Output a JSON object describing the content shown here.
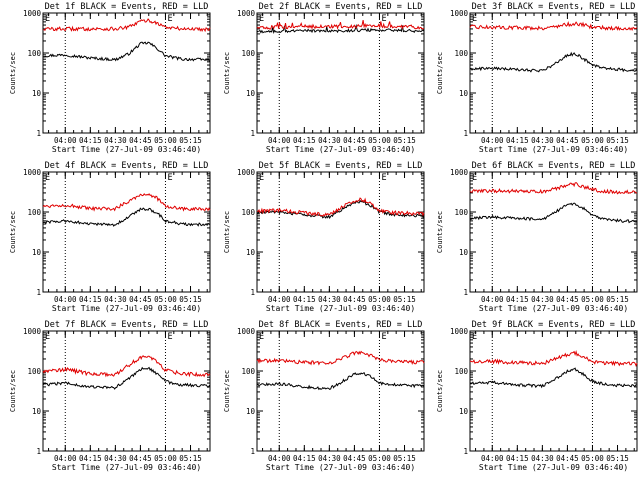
{
  "figure": {
    "colors": {
      "events": "#000000",
      "lld": "#e00000",
      "frame": "#000000",
      "background": "#ffffff"
    },
    "y_scale": "log"
  },
  "chart_data": [
    {
      "type": "line",
      "title": "Det 1f BLACK = Events, RED = LLD",
      "xlabel": "Start Time (27-Jul-09 03:46:40)",
      "ylabel": "Counts/sec",
      "x_ticks": [
        "04:00",
        "04:15",
        "04:30",
        "04:45",
        "05:00",
        "05:15"
      ],
      "x_tick_times": [
        "04:00",
        "04:15",
        "04:30",
        "04:45",
        "05:00",
        "05:15"
      ],
      "x_range": [
        "03:46:40",
        "05:26:40"
      ],
      "ylim": [
        1,
        1000
      ],
      "y_scale": "log",
      "y_ticks": [
        "1",
        "10",
        "100",
        "1000"
      ],
      "marker_lines": [
        "04:00",
        "05:00"
      ],
      "saa_flag": "E",
      "saa_flag_times": [
        "03:46:40",
        "05:00"
      ],
      "series": [
        {
          "name": "Events",
          "color": "#000000",
          "x": [
            "03:46:40",
            "04:00",
            "04:15",
            "04:30",
            "04:38",
            "04:45",
            "04:50",
            "04:55",
            "05:00",
            "05:10",
            "05:26:40"
          ],
          "values": [
            85,
            90,
            75,
            68,
            95,
            170,
            180,
            130,
            85,
            70,
            68
          ]
        },
        {
          "name": "LLD",
          "color": "#e00000",
          "x": [
            "03:46:40",
            "04:00",
            "04:15",
            "04:30",
            "04:38",
            "04:45",
            "04:50",
            "04:55",
            "05:00",
            "05:10",
            "05:26:40"
          ],
          "values": [
            400,
            400,
            400,
            400,
            440,
            620,
            650,
            560,
            440,
            400,
            395
          ]
        }
      ]
    },
    {
      "type": "line",
      "title": "Det 2f BLACK = Events, RED = LLD",
      "xlabel": "Start Time (27-Jul-09 03:46:40)",
      "ylabel": "Counts/sec",
      "x_ticks": [
        "04:00",
        "04:15",
        "04:30",
        "04:45",
        "05:00",
        "05:15"
      ],
      "x_tick_times": [
        "04:00",
        "04:15",
        "04:30",
        "04:45",
        "05:00",
        "05:15"
      ],
      "x_range": [
        "03:46:40",
        "05:26:40"
      ],
      "ylim": [
        1,
        1000
      ],
      "y_scale": "log",
      "y_ticks": [
        "1",
        "10",
        "100",
        "1000"
      ],
      "marker_lines": [
        "04:00",
        "05:00"
      ],
      "saa_flag": "E",
      "saa_flag_times": [
        "03:46:40",
        "05:00"
      ],
      "series": [
        {
          "name": "Events",
          "color": "#000000",
          "x": [
            "03:46:40",
            "04:00",
            "04:15",
            "04:30",
            "04:45",
            "05:00",
            "05:15",
            "05:26:40"
          ],
          "values": [
            340,
            350,
            360,
            355,
            370,
            380,
            360,
            350
          ]
        },
        {
          "name": "LLD",
          "color": "#e00000",
          "x": [
            "03:46:40",
            "04:00",
            "04:15",
            "04:30",
            "04:45",
            "05:00",
            "05:15",
            "05:26:40"
          ],
          "values": [
            430,
            440,
            460,
            450,
            470,
            480,
            455,
            440
          ]
        }
      ]
    },
    {
      "type": "line",
      "title": "Det 3f BLACK = Events, RED = LLD",
      "xlabel": "Start Time (27-Jul-09 03:46:40)",
      "ylabel": "Counts/sec",
      "x_ticks": [
        "04:00",
        "04:15",
        "04:30",
        "04:45",
        "05:00",
        "05:15"
      ],
      "x_tick_times": [
        "04:00",
        "04:15",
        "04:30",
        "04:45",
        "05:00",
        "05:15"
      ],
      "x_range": [
        "03:46:40",
        "05:26:40"
      ],
      "ylim": [
        1,
        1000
      ],
      "y_scale": "log",
      "y_ticks": [
        "1",
        "10",
        "100",
        "1000"
      ],
      "marker_lines": [
        "04:00",
        "05:00"
      ],
      "saa_flag": "E",
      "saa_flag_times": [
        "03:46:40",
        "05:00"
      ],
      "series": [
        {
          "name": "Events",
          "color": "#000000",
          "x": [
            "03:46:40",
            "04:00",
            "04:15",
            "04:30",
            "04:38",
            "04:45",
            "04:50",
            "04:55",
            "05:00",
            "05:10",
            "05:26:40"
          ],
          "values": [
            40,
            42,
            38,
            36,
            55,
            90,
            95,
            70,
            50,
            40,
            36
          ]
        },
        {
          "name": "LLD",
          "color": "#e00000",
          "x": [
            "03:46:40",
            "04:00",
            "04:15",
            "04:30",
            "04:38",
            "04:45",
            "04:50",
            "04:55",
            "05:00",
            "05:10",
            "05:26:40"
          ],
          "values": [
            450,
            440,
            430,
            420,
            460,
            520,
            540,
            500,
            450,
            420,
            400
          ]
        }
      ]
    },
    {
      "type": "line",
      "title": "Det 4f BLACK = Events, RED = LLD",
      "xlabel": "Start Time (27-Jul-09 03:46:40)",
      "ylabel": "Counts/sec",
      "x_ticks": [
        "04:00",
        "04:15",
        "04:30",
        "04:45",
        "05:00",
        "05:15"
      ],
      "x_tick_times": [
        "04:00",
        "04:15",
        "04:30",
        "04:45",
        "05:00",
        "05:15"
      ],
      "x_range": [
        "03:46:40",
        "05:26:40"
      ],
      "ylim": [
        1,
        1000
      ],
      "y_scale": "log",
      "y_ticks": [
        "1",
        "10",
        "100",
        "1000"
      ],
      "marker_lines": [
        "04:00",
        "05:00"
      ],
      "saa_flag": "E",
      "saa_flag_times": [
        "03:46:40",
        "05:00"
      ],
      "series": [
        {
          "name": "Events",
          "color": "#000000",
          "x": [
            "03:46:40",
            "04:00",
            "04:15",
            "04:30",
            "04:38",
            "04:45",
            "04:50",
            "04:55",
            "05:00",
            "05:10",
            "05:26:40"
          ],
          "values": [
            55,
            60,
            50,
            48,
            75,
            115,
            120,
            95,
            60,
            50,
            48
          ]
        },
        {
          "name": "LLD",
          "color": "#e00000",
          "x": [
            "03:46:40",
            "04:00",
            "04:15",
            "04:30",
            "04:38",
            "04:45",
            "04:50",
            "04:55",
            "05:00",
            "05:10",
            "05:26:40"
          ],
          "values": [
            140,
            150,
            120,
            120,
            190,
            270,
            280,
            220,
            140,
            120,
            115
          ]
        }
      ]
    },
    {
      "type": "line",
      "title": "Det 5f BLACK = Events, RED = LLD",
      "xlabel": "Start Time (27-Jul-09 03:46:40)",
      "ylabel": "Counts/sec",
      "x_ticks": [
        "04:00",
        "04:15",
        "04:30",
        "04:45",
        "05:00",
        "05:15"
      ],
      "x_tick_times": [
        "04:00",
        "04:15",
        "04:30",
        "04:45",
        "05:00",
        "05:15"
      ],
      "x_range": [
        "03:46:40",
        "05:26:40"
      ],
      "ylim": [
        1,
        1000
      ],
      "y_scale": "log",
      "y_ticks": [
        "1",
        "10",
        "100",
        "1000"
      ],
      "marker_lines": [
        "04:00",
        "05:00"
      ],
      "saa_flag": "E",
      "saa_flag_times": [
        "03:46:40",
        "05:00"
      ],
      "series": [
        {
          "name": "Events",
          "color": "#000000",
          "x": [
            "03:46:40",
            "04:00",
            "04:15",
            "04:30",
            "04:38",
            "04:45",
            "04:50",
            "04:55",
            "05:00",
            "05:10",
            "05:26:40"
          ],
          "values": [
            95,
            100,
            85,
            75,
            120,
            175,
            180,
            140,
            100,
            85,
            80
          ]
        },
        {
          "name": "LLD",
          "color": "#e00000",
          "x": [
            "03:46:40",
            "04:00",
            "04:15",
            "04:30",
            "04:38",
            "04:45",
            "04:50",
            "04:55",
            "05:00",
            "05:10",
            "05:26:40"
          ],
          "values": [
            105,
            110,
            95,
            85,
            135,
            195,
            205,
            160,
            110,
            95,
            90
          ]
        }
      ]
    },
    {
      "type": "line",
      "title": "Det 6f BLACK = Events, RED = LLD",
      "xlabel": "Start Time (27-Jul-09 03:46:40)",
      "ylabel": "Counts/sec",
      "x_ticks": [
        "04:00",
        "04:15",
        "04:30",
        "04:45",
        "05:00",
        "05:15"
      ],
      "x_tick_times": [
        "04:00",
        "04:15",
        "04:30",
        "04:45",
        "05:00",
        "05:15"
      ],
      "x_range": [
        "03:46:40",
        "05:26:40"
      ],
      "ylim": [
        1,
        1000
      ],
      "y_scale": "log",
      "y_ticks": [
        "1",
        "10",
        "100",
        "1000"
      ],
      "marker_lines": [
        "04:00",
        "05:00"
      ],
      "saa_flag": "E",
      "saa_flag_times": [
        "03:46:40",
        "05:00"
      ],
      "series": [
        {
          "name": "Events",
          "color": "#000000",
          "x": [
            "03:46:40",
            "04:00",
            "04:15",
            "04:30",
            "04:38",
            "04:45",
            "04:50",
            "04:55",
            "05:00",
            "05:10",
            "05:26:40"
          ],
          "values": [
            70,
            75,
            70,
            65,
            100,
            150,
            160,
            120,
            80,
            62,
            58
          ]
        },
        {
          "name": "LLD",
          "color": "#e00000",
          "x": [
            "03:46:40",
            "04:00",
            "04:15",
            "04:30",
            "04:38",
            "04:45",
            "04:50",
            "04:55",
            "05:00",
            "05:10",
            "05:26:40"
          ],
          "values": [
            330,
            340,
            330,
            320,
            380,
            470,
            500,
            430,
            360,
            320,
            310
          ]
        }
      ]
    },
    {
      "type": "line",
      "title": "Det 7f BLACK = Events, RED = LLD",
      "xlabel": "Start Time (27-Jul-09 03:46:40)",
      "ylabel": "Counts/sec",
      "x_ticks": [
        "04:00",
        "04:15",
        "04:30",
        "04:45",
        "05:00",
        "05:15"
      ],
      "x_tick_times": [
        "04:00",
        "04:15",
        "04:30",
        "04:45",
        "05:00",
        "05:15"
      ],
      "x_range": [
        "03:46:40",
        "05:26:40"
      ],
      "ylim": [
        1,
        1000
      ],
      "y_scale": "log",
      "y_ticks": [
        "1",
        "10",
        "100",
        "1000"
      ],
      "marker_lines": [
        "04:00",
        "05:00"
      ],
      "saa_flag": "E",
      "saa_flag_times": [
        "03:46:40",
        "05:00"
      ],
      "series": [
        {
          "name": "Events",
          "color": "#000000",
          "x": [
            "03:46:40",
            "04:00",
            "04:15",
            "04:30",
            "04:38",
            "04:45",
            "04:50",
            "04:55",
            "05:00",
            "05:10",
            "05:26:40"
          ],
          "values": [
            45,
            50,
            40,
            38,
            65,
            110,
            120,
            85,
            55,
            45,
            42
          ]
        },
        {
          "name": "LLD",
          "color": "#e00000",
          "x": [
            "03:46:40",
            "04:00",
            "04:15",
            "04:30",
            "04:38",
            "04:45",
            "04:50",
            "04:55",
            "05:00",
            "05:10",
            "05:26:40"
          ],
          "values": [
            100,
            110,
            85,
            80,
            140,
            220,
            230,
            170,
            105,
            85,
            80
          ]
        }
      ]
    },
    {
      "type": "line",
      "title": "Det 8f BLACK = Events, RED = LLD",
      "xlabel": "Start Time (27-Jul-09 03:46:40)",
      "ylabel": "Counts/sec",
      "x_ticks": [
        "04:00",
        "04:15",
        "04:30",
        "04:45",
        "05:00",
        "05:15"
      ],
      "x_tick_times": [
        "04:00",
        "04:15",
        "04:30",
        "04:45",
        "05:00",
        "05:15"
      ],
      "x_range": [
        "03:46:40",
        "05:26:40"
      ],
      "ylim": [
        1,
        1000
      ],
      "y_scale": "log",
      "y_ticks": [
        "1",
        "10",
        "100",
        "1000"
      ],
      "marker_lines": [
        "04:00",
        "05:00"
      ],
      "saa_flag": "E",
      "saa_flag_times": [
        "03:46:40",
        "05:00"
      ],
      "series": [
        {
          "name": "Events",
          "color": "#000000",
          "x": [
            "03:46:40",
            "04:00",
            "04:15",
            "04:30",
            "04:38",
            "04:45",
            "04:50",
            "04:55",
            "05:00",
            "05:10",
            "05:26:40"
          ],
          "values": [
            45,
            48,
            40,
            36,
            55,
            85,
            90,
            70,
            50,
            45,
            42
          ]
        },
        {
          "name": "LLD",
          "color": "#e00000",
          "x": [
            "03:46:40",
            "04:00",
            "04:15",
            "04:30",
            "04:38",
            "04:45",
            "04:50",
            "04:55",
            "05:00",
            "05:10",
            "05:26:40"
          ],
          "values": [
            180,
            180,
            165,
            160,
            210,
            280,
            300,
            240,
            185,
            170,
            165
          ]
        }
      ]
    },
    {
      "type": "line",
      "title": "Det 9f BLACK = Events, RED = LLD",
      "xlabel": "Start Time (27-Jul-09 03:46:40)",
      "ylabel": "Counts/sec",
      "x_ticks": [
        "04:00",
        "04:15",
        "04:30",
        "04:45",
        "05:00",
        "05:15"
      ],
      "x_tick_times": [
        "04:00",
        "04:15",
        "04:30",
        "04:45",
        "05:00",
        "05:15"
      ],
      "x_range": [
        "03:46:40",
        "05:26:40"
      ],
      "ylim": [
        1,
        1000
      ],
      "y_scale": "log",
      "y_ticks": [
        "1",
        "10",
        "100",
        "1000"
      ],
      "marker_lines": [
        "04:00",
        "05:00"
      ],
      "saa_flag": "E",
      "saa_flag_times": [
        "03:46:40",
        "05:00"
      ],
      "series": [
        {
          "name": "Events",
          "color": "#000000",
          "x": [
            "03:46:40",
            "04:00",
            "04:15",
            "04:30",
            "04:38",
            "04:45",
            "04:50",
            "04:55",
            "05:00",
            "05:10",
            "05:26:40"
          ],
          "values": [
            48,
            52,
            45,
            42,
            65,
            100,
            110,
            80,
            55,
            45,
            42
          ]
        },
        {
          "name": "LLD",
          "color": "#e00000",
          "x": [
            "03:46:40",
            "04:00",
            "04:15",
            "04:30",
            "04:38",
            "04:45",
            "04:50",
            "04:55",
            "05:00",
            "05:10",
            "05:26:40"
          ],
          "values": [
            170,
            175,
            160,
            155,
            200,
            260,
            280,
            220,
            170,
            155,
            150
          ]
        }
      ]
    }
  ]
}
